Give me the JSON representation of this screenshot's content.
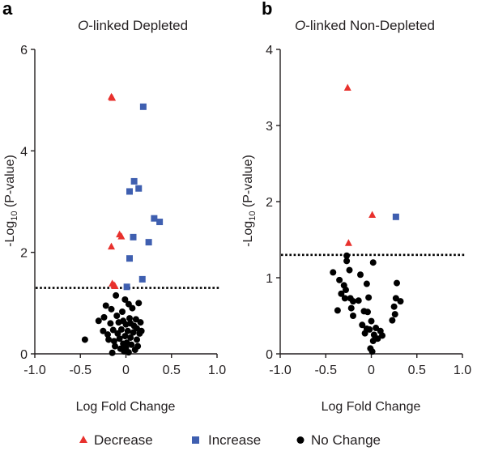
{
  "colors": {
    "decrease": "#e8312d",
    "increase": "#3f5fb0",
    "no_change": "#000000",
    "axis": "#231f20"
  },
  "legend": [
    {
      "key": "decrease",
      "label": "Decrease",
      "marker": "triangle"
    },
    {
      "key": "increase",
      "label": "Increase",
      "marker": "square"
    },
    {
      "key": "no_change",
      "label": "No Change",
      "marker": "circle"
    }
  ],
  "chart_data": [
    {
      "panel": "a",
      "type": "scatter",
      "title_italic": "O",
      "title_rest": "-linked Depleted",
      "xlabel": "Log Fold Change",
      "ylabel": "-Log10 (P-value)",
      "xlim": [
        -1.0,
        1.0
      ],
      "ylim": [
        0,
        6
      ],
      "xticks": [
        "-1.0",
        "-0.5",
        "0",
        "0.5",
        "1.0"
      ],
      "yticks": [
        "0",
        "2",
        "4",
        "6"
      ],
      "ytick_values": [
        0,
        2,
        4,
        6
      ],
      "threshold": 1.3,
      "series": [
        {
          "key": "decrease",
          "points": [
            [
              -0.16,
              5.07
            ],
            [
              -0.15,
              5.05
            ],
            [
              -0.07,
              2.36
            ],
            [
              -0.05,
              2.32
            ],
            [
              -0.16,
              2.12
            ],
            [
              -0.15,
              1.39
            ],
            [
              -0.13,
              1.36
            ],
            [
              -0.12,
              1.34
            ]
          ]
        },
        {
          "key": "increase",
          "points": [
            [
              0.19,
              4.87
            ],
            [
              0.09,
              3.4
            ],
            [
              0.14,
              3.26
            ],
            [
              0.04,
              3.2
            ],
            [
              0.31,
              2.67
            ],
            [
              0.37,
              2.6
            ],
            [
              0.08,
              2.3
            ],
            [
              0.25,
              2.2
            ],
            [
              0.04,
              1.88
            ],
            [
              0.18,
              1.47
            ],
            [
              0.01,
              1.32
            ]
          ]
        },
        {
          "key": "no_change",
          "points": [
            [
              -0.45,
              0.28
            ],
            [
              -0.25,
              0.45
            ],
            [
              -0.24,
              0.72
            ],
            [
              -0.22,
              0.95
            ],
            [
              -0.2,
              0.38
            ],
            [
              -0.19,
              0.28
            ],
            [
              -0.17,
              0.6
            ],
            [
              -0.16,
              0.88
            ],
            [
              -0.14,
              0.47
            ],
            [
              -0.13,
              0.25
            ],
            [
              -0.12,
              0.15
            ],
            [
              -0.11,
              1.15
            ],
            [
              -0.1,
              0.75
            ],
            [
              -0.09,
              0.4
            ],
            [
              -0.08,
              0.62
            ],
            [
              -0.07,
              0.3
            ],
            [
              -0.06,
              0.1
            ],
            [
              -0.05,
              0.48
            ],
            [
              -0.04,
              0.83
            ],
            [
              -0.03,
              0.2
            ],
            [
              -0.02,
              0.05
            ],
            [
              -0.01,
              0.35
            ],
            [
              0.0,
              0.58
            ],
            [
              0.0,
              0.12
            ],
            [
              0.01,
              0.22
            ],
            [
              0.02,
              0.45
            ],
            [
              0.03,
              0.03
            ],
            [
              0.04,
              0.7
            ],
            [
              0.05,
              0.32
            ],
            [
              0.06,
              0.18
            ],
            [
              0.07,
              0.9
            ],
            [
              0.08,
              0.42
            ],
            [
              0.09,
              0.55
            ],
            [
              0.1,
              0.08
            ],
            [
              0.11,
              0.68
            ],
            [
              0.12,
              0.28
            ],
            [
              0.13,
              0.15
            ],
            [
              0.14,
              1.0
            ],
            [
              0.15,
              0.4
            ],
            [
              0.16,
              0.62
            ],
            [
              -0.3,
              0.65
            ],
            [
              0.17,
              0.45
            ],
            [
              -0.01,
              1.07
            ],
            [
              0.03,
              0.98
            ],
            [
              -0.03,
              0.65
            ],
            [
              -0.15,
              0.02
            ],
            [
              0.05,
              0.6
            ],
            [
              0.12,
              0.5
            ]
          ]
        }
      ]
    },
    {
      "panel": "b",
      "type": "scatter",
      "title_italic": "O",
      "title_rest": "-linked Non-Depleted",
      "xlabel": "Log Fold Change",
      "ylabel": "-Log10 (P-value)",
      "xlim": [
        -1.0,
        1.0
      ],
      "ylim": [
        0,
        4
      ],
      "xticks": [
        "-1.0",
        "-0.5",
        "0",
        "0.5",
        "1.0"
      ],
      "yticks": [
        "0",
        "1",
        "2",
        "3",
        "4"
      ],
      "ytick_values": [
        0,
        1,
        2,
        3,
        4
      ],
      "threshold": 1.3,
      "series": [
        {
          "key": "decrease",
          "points": [
            [
              -0.26,
              3.5
            ],
            [
              0.01,
              1.83
            ],
            [
              -0.25,
              1.46
            ]
          ]
        },
        {
          "key": "increase",
          "points": [
            [
              0.27,
              1.8
            ]
          ]
        },
        {
          "key": "no_change",
          "points": [
            [
              -0.27,
              1.29
            ],
            [
              -0.27,
              1.22
            ],
            [
              -0.24,
              1.1
            ],
            [
              0.02,
              1.2
            ],
            [
              -0.42,
              1.07
            ],
            [
              -0.35,
              0.97
            ],
            [
              -0.12,
              1.04
            ],
            [
              -0.3,
              0.9
            ],
            [
              -0.05,
              0.92
            ],
            [
              0.28,
              0.93
            ],
            [
              -0.28,
              0.84
            ],
            [
              -0.33,
              0.79
            ],
            [
              -0.29,
              0.73
            ],
            [
              -0.23,
              0.73
            ],
            [
              -0.2,
              0.69
            ],
            [
              -0.14,
              0.7
            ],
            [
              -0.03,
              0.74
            ],
            [
              0.27,
              0.73
            ],
            [
              0.25,
              0.62
            ],
            [
              0.32,
              0.69
            ],
            [
              -0.37,
              0.57
            ],
            [
              -0.22,
              0.6
            ],
            [
              -0.08,
              0.56
            ],
            [
              -0.04,
              0.55
            ],
            [
              0.26,
              0.52
            ],
            [
              -0.2,
              0.5
            ],
            [
              -0.1,
              0.38
            ],
            [
              0.0,
              0.43
            ],
            [
              0.23,
              0.44
            ],
            [
              -0.05,
              0.33
            ],
            [
              -0.02,
              0.32
            ],
            [
              0.05,
              0.34
            ],
            [
              0.1,
              0.3
            ],
            [
              -0.07,
              0.27
            ],
            [
              0.03,
              0.25
            ],
            [
              0.12,
              0.24
            ],
            [
              0.02,
              0.17
            ],
            [
              0.07,
              0.2
            ],
            [
              -0.01,
              0.07
            ],
            [
              0.01,
              0.03
            ]
          ]
        }
      ]
    }
  ]
}
